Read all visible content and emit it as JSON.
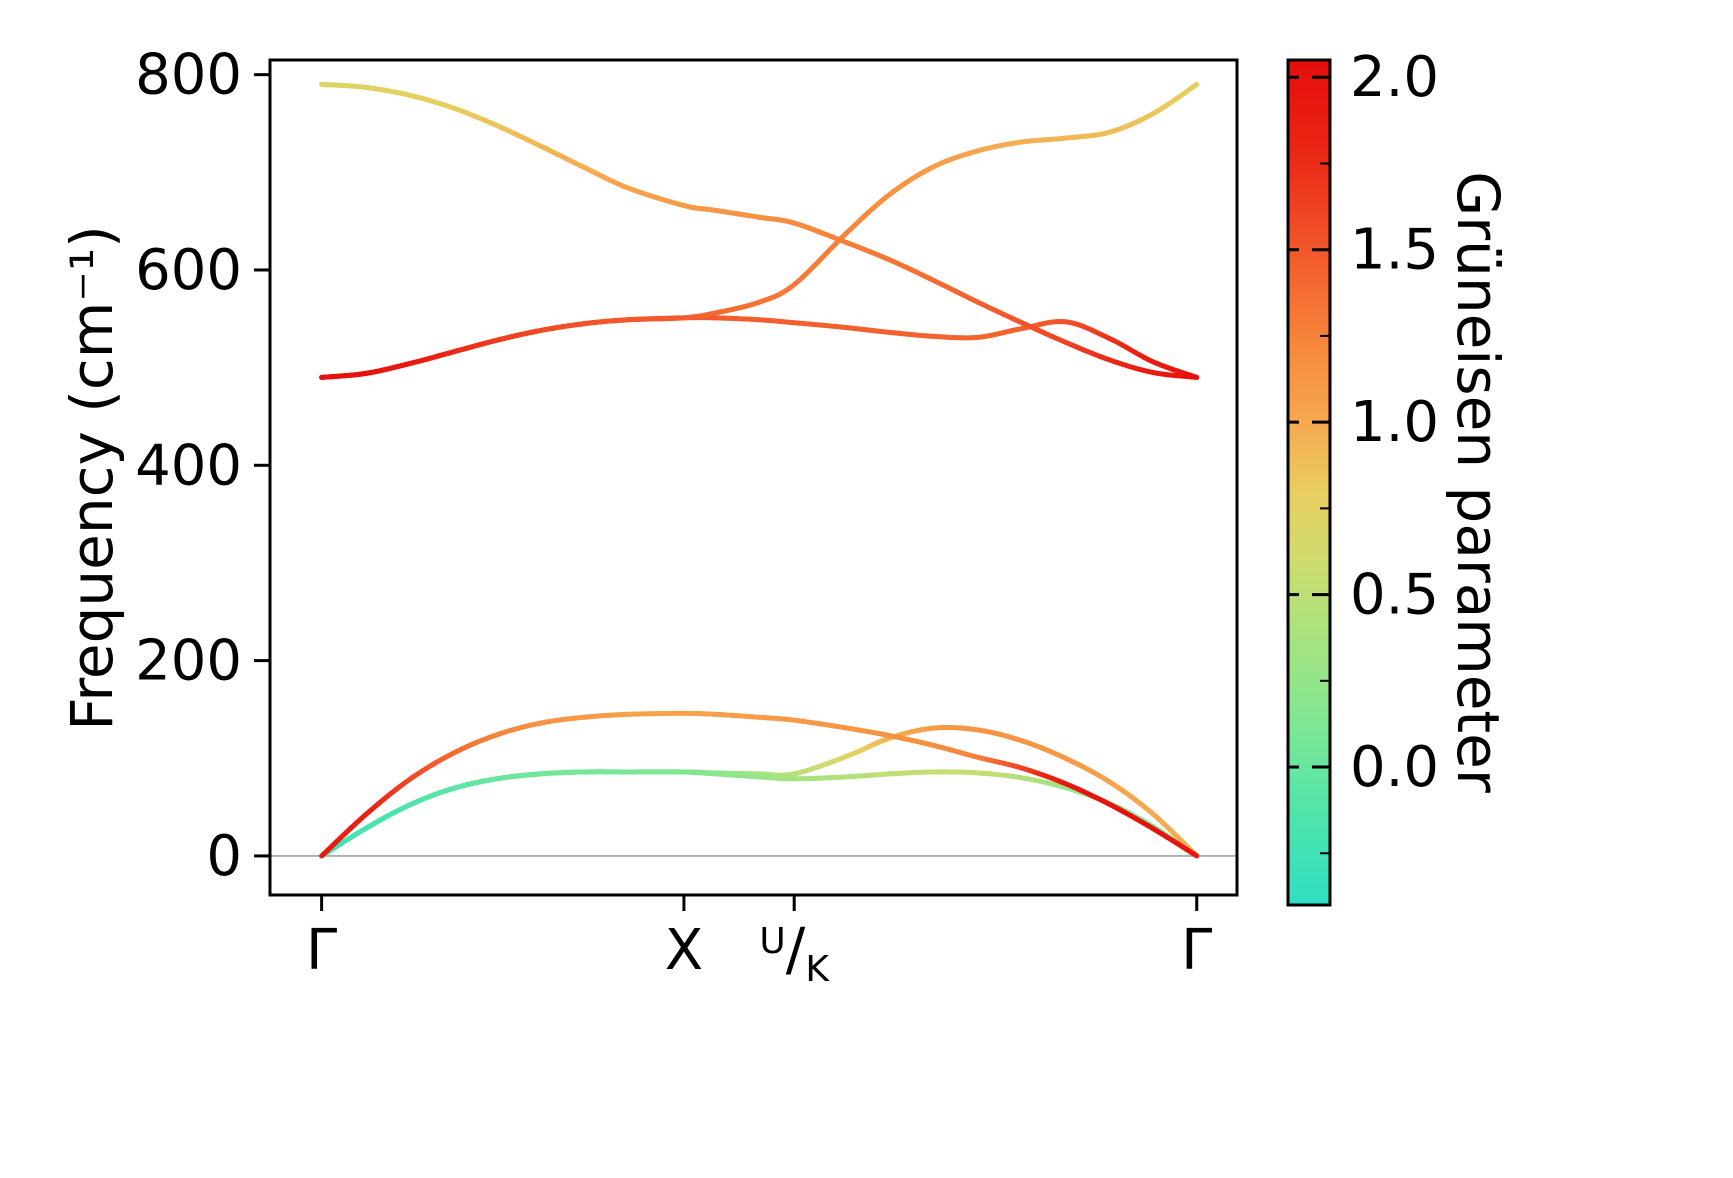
{
  "figure": {
    "background": "#ffffff",
    "frame_color": "#000000"
  },
  "chart_data": {
    "type": "line",
    "title": "",
    "xlabel": "",
    "ylabel": "Frequency (cm⁻¹)",
    "grid": false,
    "xaxis": {
      "tick_labels": [
        "Γ",
        "X",
        "U/K",
        "Γ"
      ],
      "tick_positions": [
        0,
        0.414,
        0.54,
        1.0
      ],
      "xlim": [
        -0.059,
        1.046
      ]
    },
    "yaxis": {
      "ticks": [
        0,
        200,
        400,
        600,
        800
      ],
      "ylim": [
        -40,
        815
      ]
    },
    "zero_line": {
      "y": 0,
      "color": "#b0b0b0"
    },
    "frame_color": "#000000",
    "k_fractions": [
      0,
      0.05,
      0.1,
      0.15,
      0.2,
      0.25,
      0.3,
      0.35,
      0.414,
      0.45,
      0.5,
      0.54,
      0.6,
      0.65,
      0.7,
      0.75,
      0.8,
      0.85,
      0.9,
      0.95,
      1.0
    ],
    "bands": [
      {
        "name": "acoustic-TA1",
        "freq": [
          0,
          28,
          52,
          69,
          79,
          84,
          86,
          86,
          86,
          84,
          81,
          79,
          81,
          84,
          86,
          85,
          80,
          70,
          54,
          30,
          0
        ],
        "gruneisen": [
          -0.3,
          -0.28,
          -0.22,
          -0.12,
          -0.05,
          0.0,
          0.05,
          0.08,
          0.1,
          0.15,
          0.25,
          0.35,
          0.45,
          0.5,
          0.55,
          0.55,
          0.45,
          0.3,
          0.18,
          0.08,
          0.0
        ]
      },
      {
        "name": "acoustic-TA2",
        "freq": [
          0,
          28,
          52,
          69,
          79,
          84,
          86,
          86,
          86,
          85,
          84,
          84,
          102,
          121,
          131,
          129,
          118,
          100,
          76,
          43,
          0
        ],
        "gruneisen": [
          -0.25,
          -0.2,
          -0.15,
          -0.08,
          0.0,
          0.05,
          0.08,
          0.1,
          0.12,
          0.2,
          0.32,
          0.45,
          0.7,
          0.95,
          1.1,
          1.15,
          1.15,
          1.12,
          1.05,
          1.0,
          0.95
        ]
      },
      {
        "name": "acoustic-LA",
        "freq": [
          0,
          42,
          78,
          105,
          124,
          136,
          142,
          145,
          146,
          145,
          142,
          139,
          131,
          123,
          113,
          101,
          90,
          74,
          53,
          28,
          0
        ],
        "gruneisen": [
          1.9,
          1.85,
          1.6,
          1.4,
          1.25,
          1.15,
          1.1,
          1.05,
          1.05,
          1.05,
          1.08,
          1.1,
          1.12,
          1.15,
          1.18,
          1.25,
          1.6,
          1.95,
          2.0,
          2.0,
          1.95
        ]
      },
      {
        "name": "optic-1",
        "freq": [
          490,
          494,
          504,
          516,
          528,
          538,
          545,
          549,
          551,
          551,
          549,
          546,
          541,
          536,
          532,
          531,
          540,
          547,
          530,
          506,
          490
        ],
        "gruneisen": [
          2.0,
          2.0,
          1.9,
          1.78,
          1.66,
          1.58,
          1.52,
          1.5,
          1.48,
          1.47,
          1.46,
          1.45,
          1.45,
          1.44,
          1.43,
          1.42,
          1.45,
          1.52,
          1.7,
          1.9,
          2.0
        ]
      },
      {
        "name": "optic-2",
        "freq": [
          790,
          787,
          779,
          766,
          748,
          727,
          705,
          684,
          666,
          661,
          654,
          648,
          628,
          610,
          589,
          567,
          546,
          526,
          508,
          495,
          490
        ],
        "gruneisen": [
          0.72,
          0.73,
          0.76,
          0.8,
          0.86,
          0.92,
          0.98,
          1.04,
          1.1,
          1.13,
          1.16,
          1.2,
          1.27,
          1.32,
          1.38,
          1.44,
          1.52,
          1.62,
          1.76,
          1.9,
          2.0
        ]
      },
      {
        "name": "optic-3",
        "freq": [
          490,
          494,
          504,
          516,
          528,
          538,
          545,
          549,
          551,
          556,
          567,
          585,
          638,
          678,
          706,
          722,
          731,
          735,
          741,
          760,
          790
        ],
        "gruneisen": [
          2.0,
          2.0,
          1.9,
          1.78,
          1.66,
          1.58,
          1.52,
          1.5,
          1.48,
          1.4,
          1.34,
          1.3,
          1.24,
          1.16,
          1.08,
          1.02,
          0.97,
          0.93,
          0.89,
          0.84,
          0.78
        ]
      }
    ],
    "colorbar": {
      "label": "Grüneisen parameter",
      "tick_values": [
        2.0,
        1.5,
        1.0,
        0.5,
        0.0
      ],
      "tick_labels": [
        "2.0",
        "1.5",
        "1.0",
        "0.5",
        "0.0"
      ],
      "minor_ticks": [
        1.75,
        1.25,
        0.75,
        0.25,
        -0.25
      ],
      "vmin": -0.4,
      "vmax": 2.05,
      "colormap": [
        {
          "value": -0.4,
          "color": "#2fdfc3"
        },
        {
          "value": -0.1,
          "color": "#55e5a8"
        },
        {
          "value": 0.1,
          "color": "#7ae795"
        },
        {
          "value": 0.35,
          "color": "#a4e381"
        },
        {
          "value": 0.6,
          "color": "#cfdc6e"
        },
        {
          "value": 0.8,
          "color": "#e8cd5e"
        },
        {
          "value": 1.0,
          "color": "#f6a94f"
        },
        {
          "value": 1.2,
          "color": "#f78b3d"
        },
        {
          "value": 1.5,
          "color": "#f2572b"
        },
        {
          "value": 1.8,
          "color": "#ea2413"
        },
        {
          "value": 2.05,
          "color": "#e50d0c"
        }
      ]
    }
  }
}
